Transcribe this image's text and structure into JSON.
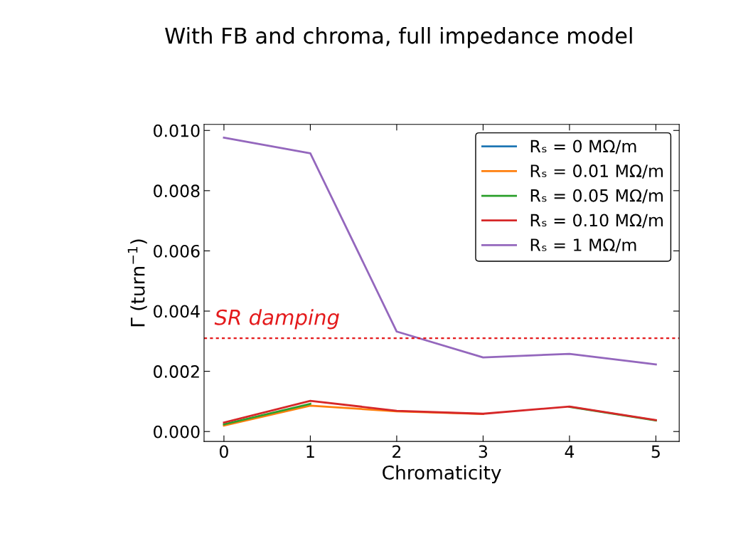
{
  "chart_data": {
    "type": "line",
    "title": "With FB and chroma, full impedance model",
    "xlabel": "Chromaticity",
    "ylabel": "Γ (turn$^{−1}$)",
    "x": [
      0,
      1,
      2,
      3,
      4,
      5
    ],
    "series": [
      {
        "name": "Rₛ = 0 MΩ/m",
        "color": "#1f77b4",
        "values": [
          null,
          null,
          null,
          null,
          null,
          null
        ]
      },
      {
        "name": "Rₛ = 0.01 MΩ/m",
        "color": "#ff7f0e",
        "values": [
          0.0002,
          0.00086,
          0.00067,
          0.00058,
          null,
          null
        ]
      },
      {
        "name": "Rₛ = 0.05 MΩ/m",
        "color": "#2ca02c",
        "values": [
          0.00024,
          0.00092,
          null,
          null,
          0.00082,
          0.00037
        ]
      },
      {
        "name": "Rₛ = 0.10 MΩ/m",
        "color": "#d62728",
        "values": [
          0.0003,
          0.00102,
          0.00069,
          0.00059,
          0.00083,
          0.00038
        ]
      },
      {
        "name": "Rₛ = 1 MΩ/m",
        "color": "#9467bd",
        "values": [
          0.00976,
          0.00924,
          0.00332,
          0.00246,
          0.00258,
          0.00223
        ]
      }
    ],
    "xlim": [
      -0.23,
      5.27
    ],
    "ylim": [
      -0.00033,
      0.0102
    ],
    "xticks": [
      0,
      1,
      2,
      3,
      4,
      5
    ],
    "yticks": [
      {
        "value": 0,
        "label": "0.000"
      },
      {
        "value": 0.002,
        "label": "0.002"
      },
      {
        "value": 0.004,
        "label": "0.004"
      },
      {
        "value": 0.006,
        "label": "0.006"
      },
      {
        "value": 0.008,
        "label": "0.008"
      },
      {
        "value": 0.01,
        "label": "0.010"
      }
    ],
    "ref_lines": [
      {
        "axis": "y",
        "value": 0.0031,
        "label": "SR damping",
        "color": "#e41a1c",
        "line_style": "dotted"
      }
    ],
    "legend": "top right",
    "grid": false
  }
}
